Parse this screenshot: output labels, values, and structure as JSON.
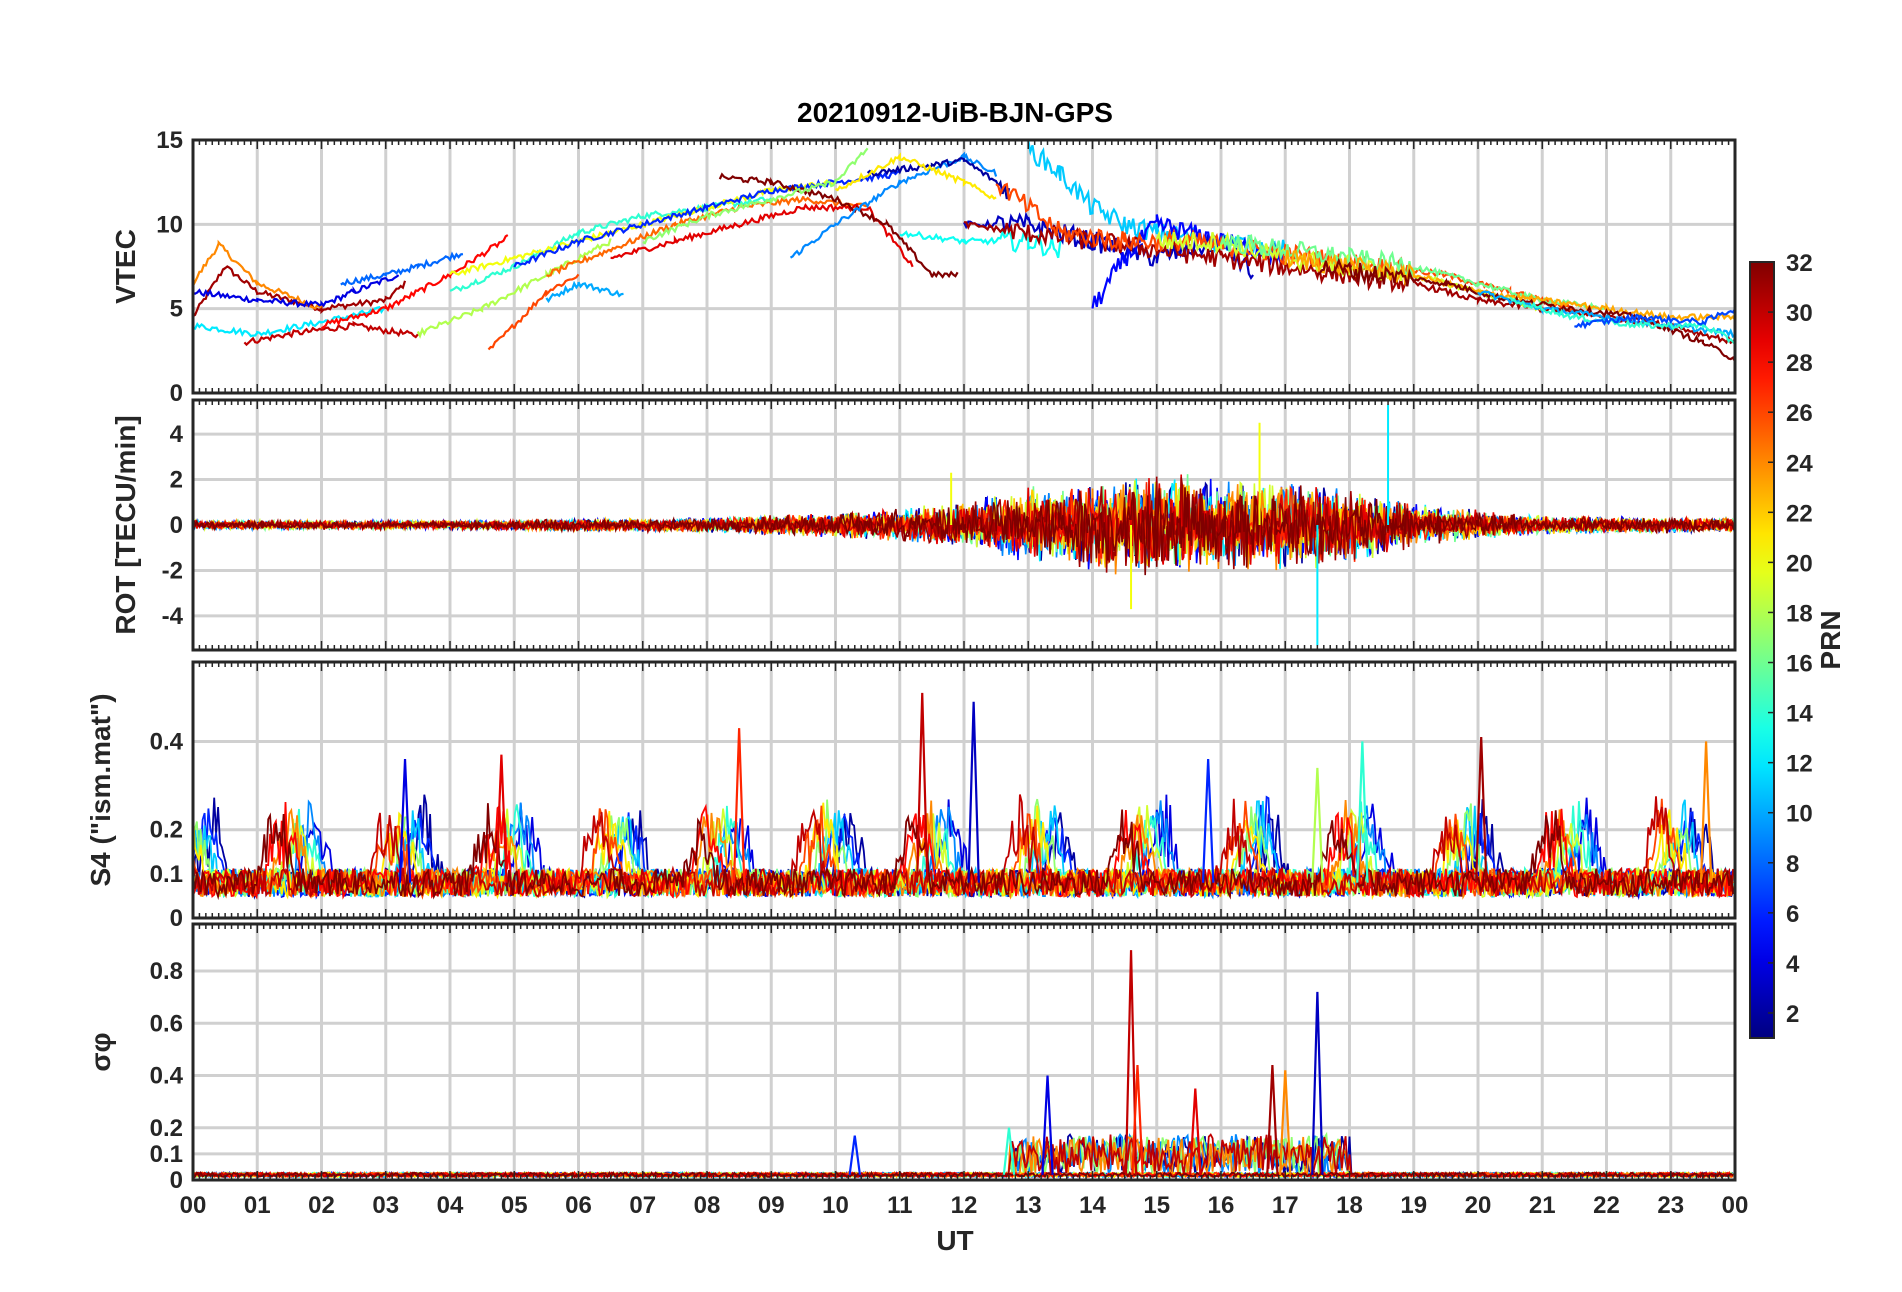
{
  "title": "20210912-UiB-BJN-GPS",
  "colorbar": {
    "label": "PRN",
    "range": [
      1,
      32
    ],
    "ticks": [
      "2",
      "4",
      "6",
      "8",
      "10",
      "12",
      "14",
      "16",
      "18",
      "20",
      "22",
      "24",
      "26",
      "28",
      "30",
      "32"
    ],
    "colormap": "jet"
  },
  "x_axis": {
    "label": "UT",
    "range_hours": [
      0,
      24
    ],
    "ticks": [
      "00",
      "01",
      "02",
      "03",
      "04",
      "05",
      "06",
      "07",
      "08",
      "09",
      "10",
      "11",
      "12",
      "13",
      "14",
      "15",
      "16",
      "17",
      "18",
      "19",
      "20",
      "21",
      "22",
      "23",
      "00"
    ]
  },
  "chart_data": [
    {
      "type": "line",
      "panel": "vtec",
      "ylabel": "VTEC",
      "ylim": [
        0,
        15
      ],
      "yticks": [
        "0",
        "5",
        "10",
        "15"
      ],
      "grid": true,
      "series": [
        {
          "prn": 31,
          "x": [
            0,
            0.5,
            1,
            2,
            3,
            3.3
          ],
          "y": [
            4.5,
            7.5,
            6,
            5,
            5.5,
            6.5
          ]
        },
        {
          "prn": 24,
          "x": [
            0,
            0.4,
            1,
            2
          ],
          "y": [
            6.5,
            8.8,
            6.5,
            5
          ]
        },
        {
          "prn": 4,
          "x": [
            0,
            1,
            2,
            2.5,
            3.2
          ],
          "y": [
            6,
            5.5,
            5.2,
            6,
            7
          ]
        },
        {
          "prn": 30,
          "x": [
            0.8,
            1.5,
            2.5,
            3.5
          ],
          "y": [
            3,
            3.5,
            4,
            3.4
          ]
        },
        {
          "prn": 12,
          "x": [
            0,
            1,
            2,
            3
          ],
          "y": [
            4,
            3.5,
            4.2,
            5
          ]
        },
        {
          "prn": 8,
          "x": [
            2.3,
            3,
            3.5,
            4.2
          ],
          "y": [
            6.5,
            7,
            7.5,
            8.3
          ]
        },
        {
          "prn": 28,
          "x": [
            2,
            3,
            4,
            4.9
          ],
          "y": [
            4,
            5,
            7,
            9.2
          ]
        },
        {
          "prn": 18,
          "x": [
            3.5,
            4.5,
            5.5,
            6.5
          ],
          "y": [
            3.5,
            5,
            7,
            9
          ]
        },
        {
          "prn": 26,
          "x": [
            4.6,
            5,
            5.5,
            6
          ],
          "y": [
            2.5,
            4,
            6,
            7
          ]
        },
        {
          "prn": 10,
          "x": [
            5.5,
            6,
            6.7
          ],
          "y": [
            5.5,
            6.5,
            5.8
          ]
        },
        {
          "prn": 14,
          "x": [
            4,
            5,
            6,
            7,
            8,
            9
          ],
          "y": [
            6,
            7.5,
            9.5,
            10.5,
            11,
            11.5
          ]
        },
        {
          "prn": 20,
          "x": [
            4,
            5,
            6,
            7,
            8,
            9,
            10
          ],
          "y": [
            7,
            8,
            9,
            10,
            11,
            12,
            12.5
          ]
        },
        {
          "prn": 6,
          "x": [
            5,
            6,
            7,
            8,
            9,
            10,
            11
          ],
          "y": [
            7.5,
            9,
            10,
            11,
            12,
            12.5,
            13
          ]
        },
        {
          "prn": 25,
          "x": [
            5.5,
            6.5,
            7.5,
            8.5,
            9.5,
            10.5
          ],
          "y": [
            7,
            8.5,
            10,
            11,
            11.5,
            11
          ]
        },
        {
          "prn": 29,
          "x": [
            6.5,
            7.5,
            8.5,
            9.5,
            10.5,
            11.2
          ],
          "y": [
            8,
            9,
            10,
            11,
            11,
            7.5
          ]
        },
        {
          "prn": 32,
          "x": [
            8.2,
            9,
            10,
            10.8,
            11.5,
            11.9
          ],
          "y": [
            12.8,
            12.5,
            11.5,
            10,
            7,
            7
          ]
        },
        {
          "prn": 17,
          "x": [
            7,
            8,
            9,
            10,
            10.5
          ],
          "y": [
            9,
            10.5,
            11.5,
            12.5,
            14.5
          ]
        },
        {
          "prn": 9,
          "x": [
            9.3,
            10,
            11,
            12,
            12.5
          ],
          "y": [
            8,
            10,
            12.5,
            14,
            13
          ]
        },
        {
          "prn": 2,
          "x": [
            10.5,
            11.5,
            12,
            12.7
          ],
          "y": [
            13,
            13.5,
            13.8,
            12
          ]
        },
        {
          "prn": 21,
          "x": [
            10,
            11,
            12,
            12.5
          ],
          "y": [
            12,
            14,
            12.5,
            11.5
          ]
        },
        {
          "prn": 13,
          "x": [
            11,
            12,
            13,
            13.5
          ],
          "y": [
            9.5,
            9,
            9,
            8.5
          ]
        },
        {
          "prn": 11,
          "x": [
            13,
            13.5,
            14,
            14.5,
            15,
            16,
            17
          ],
          "y": [
            14.5,
            13,
            11,
            10,
            9.5,
            9,
            8.5
          ]
        },
        {
          "prn": 3,
          "x": [
            12,
            13,
            14,
            15,
            16,
            16.5
          ],
          "y": [
            10,
            10,
            9,
            8,
            9,
            7
          ]
        },
        {
          "prn": 5,
          "x": [
            14,
            14.5,
            15,
            16,
            17
          ],
          "y": [
            5,
            8,
            10,
            9,
            8
          ]
        },
        {
          "prn": 31,
          "x": [
            12,
            13,
            14,
            15,
            16,
            17,
            18,
            19,
            20,
            21,
            22,
            23,
            24
          ],
          "y": [
            10,
            9.5,
            9,
            8.5,
            8,
            7.5,
            7,
            6.5,
            5.5,
            5,
            4.5,
            4,
            3
          ]
        },
        {
          "prn": 26,
          "x": [
            12.5,
            13.5,
            14.5,
            15.5,
            16.5,
            17.5,
            18.5,
            19.5,
            20.5,
            21.5
          ],
          "y": [
            12.5,
            9.5,
            9,
            9,
            8.5,
            8,
            7.5,
            7,
            6,
            5
          ]
        },
        {
          "prn": 19,
          "x": [
            15,
            16,
            17,
            18,
            19,
            20,
            21
          ],
          "y": [
            9,
            9,
            8,
            7.5,
            7,
            6,
            5
          ]
        },
        {
          "prn": 16,
          "x": [
            16,
            17,
            18,
            19,
            20,
            21,
            22
          ],
          "y": [
            9,
            8.5,
            8,
            7.5,
            6.5,
            5.5,
            5
          ]
        },
        {
          "prn": 23,
          "x": [
            17,
            18,
            19,
            20,
            21,
            22,
            23,
            24
          ],
          "y": [
            8,
            7.5,
            7,
            6,
            5.5,
            5,
            4.5,
            4.5
          ]
        },
        {
          "prn": 32,
          "x": [
            17.5,
            18.5,
            19.5,
            20.5,
            21.5,
            22.5,
            23.5,
            24
          ],
          "y": [
            7.5,
            7,
            6.5,
            5.5,
            5,
            4.5,
            3,
            2
          ]
        },
        {
          "prn": 10,
          "x": [
            20,
            21,
            22,
            23,
            24
          ],
          "y": [
            6,
            5,
            4.5,
            4,
            3.5
          ]
        },
        {
          "prn": 14,
          "x": [
            20.5,
            21.5,
            22.5,
            23.5,
            24
          ],
          "y": [
            5.5,
            4.5,
            4,
            4,
            3
          ]
        },
        {
          "prn": 7,
          "x": [
            21.5,
            22.5,
            23.5,
            24
          ],
          "y": [
            4,
            4.5,
            4.2,
            5
          ]
        }
      ]
    },
    {
      "type": "line",
      "panel": "rot",
      "ylabel": "ROT [TECU/min]",
      "ylim": [
        -5.5,
        5.5
      ],
      "yticks": [
        "-4",
        "-2",
        "0",
        "2",
        "4"
      ],
      "grid": true,
      "x_range": [
        0,
        24
      ],
      "spread_profile": {
        "x": [
          0,
          4,
          8,
          10,
          12,
          13,
          14,
          15,
          16,
          17,
          18,
          19,
          20,
          21,
          24
        ],
        "amplitude": [
          0.3,
          0.3,
          0.5,
          0.8,
          1.5,
          2.5,
          3,
          3.5,
          3,
          3,
          2.5,
          1.5,
          1,
          0.6,
          0.5
        ]
      },
      "peaks": [
        {
          "x": 18.6,
          "y": 5.3
        },
        {
          "x": 17.5,
          "y": -5.3
        },
        {
          "x": 14.6,
          "y": -3.7
        },
        {
          "x": 16.6,
          "y": 4.5
        },
        {
          "x": 11.8,
          "y": 2.3
        }
      ]
    },
    {
      "type": "line",
      "panel": "s4",
      "ylabel": "S4 (\"ism.mat\")",
      "ylim": [
        0,
        0.58
      ],
      "yticks": [
        "0",
        "0.1",
        "0.2",
        "0.4"
      ],
      "grid": true,
      "x_range": [
        0,
        24
      ],
      "baseline": 0.08,
      "peaks": [
        {
          "x": 11.35,
          "y": 0.51
        },
        {
          "x": 12.15,
          "y": 0.49
        },
        {
          "x": 8.5,
          "y": 0.43
        },
        {
          "x": 20.05,
          "y": 0.41
        },
        {
          "x": 23.55,
          "y": 0.4
        },
        {
          "x": 3.3,
          "y": 0.36
        },
        {
          "x": 4.8,
          "y": 0.37
        },
        {
          "x": 18.2,
          "y": 0.4
        },
        {
          "x": 15.8,
          "y": 0.36
        },
        {
          "x": 17.5,
          "y": 0.34
        }
      ]
    },
    {
      "type": "line",
      "panel": "sigma_phi",
      "ylabel": "σφ",
      "ylim": [
        0,
        0.98
      ],
      "yticks": [
        "0",
        "0.1",
        "0.2",
        "0.4",
        "0.6",
        "0.8"
      ],
      "grid": true,
      "x_range": [
        0,
        24
      ],
      "baseline": 0.02,
      "peaks": [
        {
          "x": 14.6,
          "y": 0.88
        },
        {
          "x": 17.5,
          "y": 0.72
        },
        {
          "x": 14.7,
          "y": 0.44
        },
        {
          "x": 16.8,
          "y": 0.44
        },
        {
          "x": 17.0,
          "y": 0.42
        },
        {
          "x": 13.3,
          "y": 0.4
        },
        {
          "x": 15.6,
          "y": 0.35
        },
        {
          "x": 12.7,
          "y": 0.2
        },
        {
          "x": 10.3,
          "y": 0.17
        }
      ]
    }
  ]
}
